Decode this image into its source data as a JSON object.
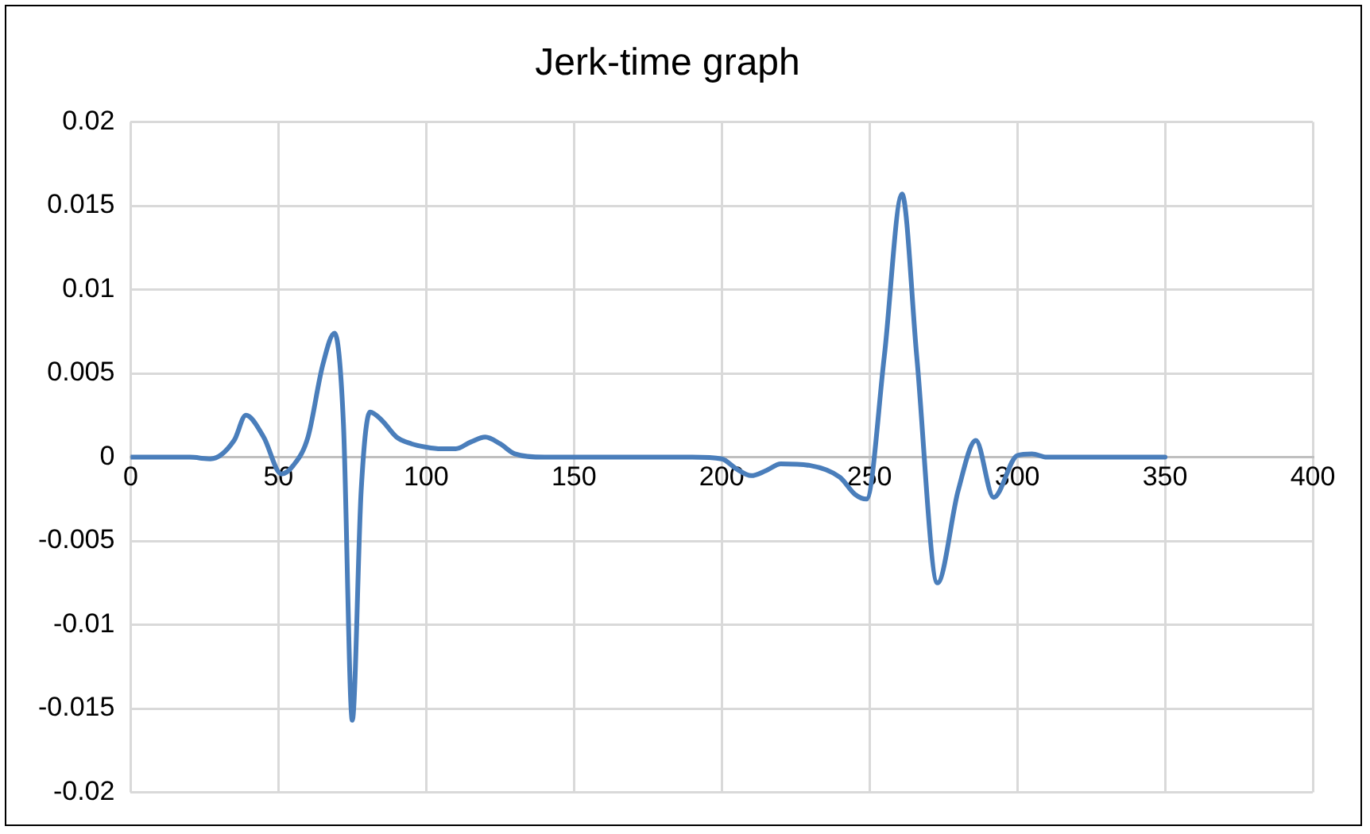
{
  "chart_data": {
    "type": "line",
    "title": "Jerk-time graph",
    "x": [
      0,
      10,
      20,
      27,
      35,
      39,
      45,
      51,
      55,
      60,
      65,
      69,
      72,
      75,
      78,
      81,
      85,
      90,
      95,
      100,
      105,
      110,
      115,
      120,
      125,
      130,
      140,
      150,
      170,
      190,
      200,
      205,
      210,
      215,
      220,
      230,
      240,
      245,
      249,
      255,
      261,
      266,
      273,
      280,
      286,
      292,
      300,
      305,
      310,
      330,
      350
    ],
    "series": [
      {
        "color": "#4a7ebb",
        "values": [
          0,
          0,
          0,
          -0.0001,
          0.001,
          0.0025,
          0.0012,
          -0.001,
          -0.0005,
          0.0012,
          0.0055,
          0.0074,
          0.002,
          -0.0157,
          -0.002,
          0.0027,
          0.0022,
          0.0012,
          0.0008,
          0.0006,
          0.0005,
          0.0005,
          0.0009,
          0.0012,
          0.0008,
          0.0002,
          0,
          0,
          0,
          0,
          -0.0001,
          -0.0007,
          -0.0011,
          -0.0008,
          -0.0004,
          -0.0005,
          -0.0012,
          -0.0022,
          -0.0025,
          0.006,
          0.0157,
          0.006,
          -0.0075,
          -0.002,
          0.001,
          -0.0024,
          0.0001,
          0.0002,
          0,
          0,
          0
        ]
      }
    ],
    "xlim": [
      0,
      400
    ],
    "xticks": [
      0,
      50,
      100,
      150,
      200,
      250,
      300,
      350,
      400
    ],
    "ylim": [
      -0.02,
      0.02
    ],
    "yticks": [
      -0.02,
      -0.015,
      -0.01,
      -0.005,
      0,
      0.005,
      0.01,
      0.015,
      0.02
    ],
    "grid": true,
    "legend": false,
    "marker": "none",
    "line_style": "solid"
  }
}
